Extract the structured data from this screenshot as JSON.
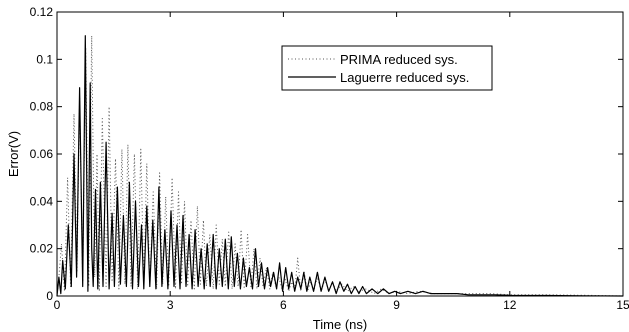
{
  "chart_data": {
    "type": "line",
    "title": "",
    "xlabel": "Time (ns)",
    "ylabel": "Error(V)",
    "xlim": [
      0,
      15
    ],
    "ylim": [
      0,
      0.12
    ],
    "xticks": [
      0,
      3,
      6,
      9,
      12,
      15
    ],
    "xtick_labels": [
      "0",
      "3",
      "6",
      "9",
      "12",
      "15"
    ],
    "yticks": [
      0,
      0.02,
      0.04,
      0.06,
      0.08,
      0.1,
      0.12
    ],
    "ytick_labels": [
      "0",
      "0.02",
      "0.04",
      "0.06",
      "0.08",
      "0.1",
      "0.12"
    ],
    "grid": false,
    "legend_position": "top-right",
    "series": [
      {
        "name": "PRIMA reduced sys.",
        "style": "dotted",
        "color": "#555555",
        "x": [
          0,
          0.05,
          0.12,
          0.2,
          0.28,
          0.36,
          0.45,
          0.53,
          0.6,
          0.68,
          0.76,
          0.84,
          0.92,
          1.0,
          1.06,
          1.12,
          1.2,
          1.3,
          1.38,
          1.46,
          1.55,
          1.64,
          1.72,
          1.8,
          1.88,
          1.96,
          2.05,
          2.14,
          2.22,
          2.3,
          2.38,
          2.46,
          2.55,
          2.64,
          2.72,
          2.8,
          2.88,
          2.96,
          3.05,
          3.14,
          3.22,
          3.3,
          3.38,
          3.46,
          3.55,
          3.64,
          3.72,
          3.8,
          3.88,
          3.96,
          4.05,
          4.14,
          4.22,
          4.3,
          4.38,
          4.46,
          4.55,
          4.64,
          4.72,
          4.8,
          4.88,
          4.96,
          5.05,
          5.14,
          5.22,
          5.3,
          5.38,
          5.46,
          5.55,
          5.64,
          5.72,
          5.8,
          5.88,
          5.96,
          6.05,
          6.14,
          6.22,
          6.3,
          6.38,
          6.46,
          6.55,
          6.64,
          6.72,
          6.8,
          6.9,
          7.0,
          7.1,
          7.2,
          7.3,
          7.4,
          7.55,
          7.7,
          7.85,
          8.0,
          8.2,
          8.4,
          8.6,
          8.8,
          9.0,
          9.3,
          9.6,
          10.0,
          10.5,
          11.0,
          11.5,
          12.0,
          13.0,
          14.0,
          15.0
        ],
        "y": [
          0,
          0.008,
          0.022,
          0.002,
          0.05,
          0.004,
          0.077,
          0.01,
          0.084,
          0.006,
          0.105,
          0.004,
          0.11,
          0.008,
          0.06,
          0.002,
          0.075,
          0.004,
          0.08,
          0.006,
          0.058,
          0.003,
          0.062,
          0.005,
          0.064,
          0.004,
          0.06,
          0.003,
          0.062,
          0.006,
          0.056,
          0.004,
          0.044,
          0.003,
          0.052,
          0.005,
          0.042,
          0.004,
          0.05,
          0.003,
          0.044,
          0.005,
          0.04,
          0.004,
          0.032,
          0.003,
          0.038,
          0.005,
          0.032,
          0.004,
          0.026,
          0.003,
          0.03,
          0.005,
          0.024,
          0.004,
          0.027,
          0.003,
          0.022,
          0.004,
          0.028,
          0.003,
          0.026,
          0.004,
          0.02,
          0.003,
          0.016,
          0.004,
          0.012,
          0.003,
          0.01,
          0.004,
          0.008,
          0.003,
          0.007,
          0.002,
          0.006,
          0.002,
          0.016,
          0.002,
          0.01,
          0.002,
          0.006,
          0.002,
          0.008,
          0.002,
          0.007,
          0.002,
          0.006,
          0.002,
          0.005,
          0.002,
          0.004,
          0.002,
          0.003,
          0.001,
          0.003,
          0.001,
          0.002,
          0.001,
          0.002,
          0.001,
          0.001,
          0.001,
          0.001,
          0.0005,
          0.0005,
          0.0003,
          0
        ]
      },
      {
        "name": "Laguerre reduced sys.",
        "style": "solid",
        "color": "#000000",
        "x": [
          0,
          0.05,
          0.1,
          0.15,
          0.22,
          0.3,
          0.38,
          0.45,
          0.52,
          0.6,
          0.68,
          0.75,
          0.82,
          0.88,
          0.92,
          0.96,
          1.02,
          1.08,
          1.15,
          1.22,
          1.3,
          1.38,
          1.46,
          1.52,
          1.6,
          1.68,
          1.76,
          1.84,
          1.92,
          2.0,
          2.08,
          2.16,
          2.24,
          2.3,
          2.38,
          2.46,
          2.54,
          2.62,
          2.7,
          2.78,
          2.86,
          2.94,
          3.02,
          3.1,
          3.18,
          3.26,
          3.34,
          3.42,
          3.5,
          3.58,
          3.66,
          3.74,
          3.82,
          3.9,
          3.98,
          4.06,
          4.14,
          4.22,
          4.3,
          4.38,
          4.46,
          4.54,
          4.62,
          4.7,
          4.78,
          4.86,
          4.94,
          5.02,
          5.1,
          5.18,
          5.26,
          5.34,
          5.42,
          5.5,
          5.58,
          5.66,
          5.74,
          5.82,
          5.9,
          5.98,
          6.06,
          6.14,
          6.22,
          6.3,
          6.38,
          6.46,
          6.54,
          6.62,
          6.7,
          6.8,
          6.9,
          7.0,
          7.1,
          7.2,
          7.3,
          7.4,
          7.5,
          7.6,
          7.7,
          7.8,
          7.9,
          8.0,
          8.1,
          8.2,
          8.35,
          8.5,
          8.65,
          8.8,
          8.95,
          9.1,
          9.3,
          9.5,
          9.7,
          9.9,
          10.1,
          10.3,
          10.6,
          10.9,
          11.2,
          11.6,
          12.0,
          13.0,
          14.0,
          15.0
        ],
        "y": [
          0,
          0.008,
          0.001,
          0.015,
          0.003,
          0.03,
          0.004,
          0.06,
          0.008,
          0.088,
          0.004,
          0.11,
          0.002,
          0.09,
          0.02,
          0.004,
          0.045,
          0.003,
          0.048,
          0.004,
          0.065,
          0.003,
          0.035,
          0.004,
          0.046,
          0.005,
          0.034,
          0.004,
          0.048,
          0.003,
          0.04,
          0.004,
          0.03,
          0.003,
          0.038,
          0.004,
          0.032,
          0.003,
          0.046,
          0.004,
          0.028,
          0.003,
          0.036,
          0.004,
          0.03,
          0.003,
          0.034,
          0.004,
          0.026,
          0.003,
          0.028,
          0.004,
          0.02,
          0.003,
          0.022,
          0.004,
          0.026,
          0.003,
          0.02,
          0.004,
          0.024,
          0.003,
          0.025,
          0.004,
          0.018,
          0.003,
          0.016,
          0.004,
          0.012,
          0.003,
          0.02,
          0.004,
          0.014,
          0.003,
          0.012,
          0.004,
          0.01,
          0.003,
          0.014,
          0.002,
          0.012,
          0.003,
          0.01,
          0.002,
          0.008,
          0.003,
          0.01,
          0.002,
          0.008,
          0.002,
          0.01,
          0.002,
          0.008,
          0.002,
          0.006,
          0.001,
          0.006,
          0.002,
          0.005,
          0.001,
          0.004,
          0.001,
          0.004,
          0.001,
          0.003,
          0.001,
          0.003,
          0.001,
          0.002,
          0.001,
          0.002,
          0.001,
          0.002,
          0.001,
          0.001,
          0.001,
          0.001,
          0.0005,
          0.0005,
          0.0005,
          0.0003,
          0.0002,
          0.0001,
          0
        ]
      }
    ]
  }
}
